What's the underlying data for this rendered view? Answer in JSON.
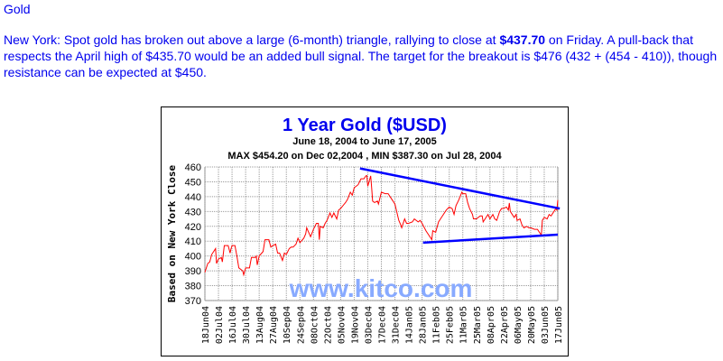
{
  "article": {
    "heading": "Gold",
    "text_before": "New York: Spot gold has broken out above a large (6-month) triangle, rallying to close at ",
    "bold_price": "$437.70",
    "text_after": " on Friday. A pull-back that respects the April high of $435.70 would be an added bull signal. The target for the breakout is $476 (432 + (454 - 410)), though resistance can be expected at $450."
  },
  "chart_data": {
    "type": "line",
    "title": "1 Year Gold ($USD)",
    "subtitle": "June 18, 2004 to June 17, 2005",
    "subtitle2": "MAX $454.20 on Dec 02,2004 , MIN $387.30 on Jul 28, 2004",
    "ylabel": "Based on New York Close",
    "watermark": "www.kitco.com",
    "ylim": [
      370,
      460
    ],
    "yticks": [
      460,
      450,
      440,
      430,
      420,
      410,
      400,
      390,
      380,
      370
    ],
    "xlim": [
      "2004-06-18",
      "2005-06-17"
    ],
    "xticks": [
      "18Jun04",
      "02Jul04",
      "16Jul04",
      "30Jul04",
      "13Aug04",
      "27Aug04",
      "10Sep04",
      "24Sep04",
      "08Oct04",
      "22Oct04",
      "05Nov04",
      "19Nov04",
      "03Dec04",
      "17Dec04",
      "31Dec04",
      "14Jan05",
      "28Jan05",
      "11Feb05",
      "25Feb05",
      "11Mar05",
      "25Mar05",
      "08Apr05",
      "22Apr05",
      "06May05",
      "20May05",
      "03Jun05",
      "17Jun05"
    ],
    "grid": true,
    "colors": {
      "price": "#ff0000",
      "trendlines": "#0000ff",
      "title": "#0000ee",
      "watermark": "#88aaff"
    },
    "series": [
      {
        "x": [
          "2004-06-18",
          "2004-06-21",
          "2004-06-23",
          "2004-06-25",
          "2004-06-29",
          "2004-06-30",
          "2004-07-02",
          "2004-07-05",
          "2004-07-06",
          "2004-07-08",
          "2004-07-12",
          "2004-07-14",
          "2004-07-15",
          "2004-07-16",
          "2004-07-19",
          "2004-07-21",
          "2004-07-23",
          "2004-07-27",
          "2004-07-28",
          "2004-07-30",
          "2004-08-03",
          "2004-08-05",
          "2004-08-09",
          "2004-08-10",
          "2004-08-11",
          "2004-08-13",
          "2004-08-17",
          "2004-08-19",
          "2004-08-23",
          "2004-08-25",
          "2004-08-27",
          "2004-08-30",
          "2004-09-01",
          "2004-09-03",
          "2004-09-06",
          "2004-09-08",
          "2004-09-10",
          "2004-09-13",
          "2004-09-15",
          "2004-09-17",
          "2004-09-20",
          "2004-09-22",
          "2004-09-24",
          "2004-09-28",
          "2004-09-30",
          "2004-10-01",
          "2004-10-05",
          "2004-10-08",
          "2004-10-11",
          "2004-10-13",
          "2004-10-14",
          "2004-10-15",
          "2004-10-18",
          "2004-10-20",
          "2004-10-22",
          "2004-10-25",
          "2004-10-27",
          "2004-10-29",
          "2004-11-01",
          "2004-11-03",
          "2004-11-05",
          "2004-11-10",
          "2004-11-12",
          "2004-11-15",
          "2004-11-17",
          "2004-11-19",
          "2004-11-23",
          "2004-11-26",
          "2004-11-29",
          "2004-12-01",
          "2004-12-02",
          "2004-12-03",
          "2004-12-06",
          "2004-12-07",
          "2004-12-08",
          "2004-12-10",
          "2004-12-13",
          "2004-12-14",
          "2004-12-17",
          "2004-12-21",
          "2004-12-24",
          "2004-12-28",
          "2004-12-31",
          "2005-01-04",
          "2005-01-06",
          "2005-01-07",
          "2005-01-10",
          "2005-01-12",
          "2005-01-14",
          "2005-01-18",
          "2005-01-20",
          "2005-01-24",
          "2005-01-26",
          "2005-01-28",
          "2005-02-01",
          "2005-02-03",
          "2005-02-07",
          "2005-02-08",
          "2005-02-11",
          "2005-02-14",
          "2005-02-17",
          "2005-02-18",
          "2005-02-22",
          "2005-02-25",
          "2005-02-28",
          "2005-03-02",
          "2005-03-04",
          "2005-03-07",
          "2005-03-10",
          "2005-03-11",
          "2005-03-14",
          "2005-03-16",
          "2005-03-18",
          "2005-03-21",
          "2005-03-22",
          "2005-03-25",
          "2005-03-29",
          "2005-03-31",
          "2005-04-01",
          "2005-04-04",
          "2005-04-06",
          "2005-04-08",
          "2005-04-11",
          "2005-04-13",
          "2005-04-15",
          "2005-04-18",
          "2005-04-20",
          "2005-04-22",
          "2005-04-25",
          "2005-04-27",
          "2005-04-28",
          "2005-04-29",
          "2005-05-03",
          "2005-05-05",
          "2005-05-06",
          "2005-05-09",
          "2005-05-11",
          "2005-05-13",
          "2005-05-16",
          "2005-05-18",
          "2005-05-20",
          "2005-05-24",
          "2005-05-27",
          "2005-05-31",
          "2005-06-01",
          "2005-06-03",
          "2005-06-06",
          "2005-06-08",
          "2005-06-10",
          "2005-06-13",
          "2005-06-15",
          "2005-06-16",
          "2005-06-17"
        ],
        "y": [
          389,
          395,
          396,
          401,
          405,
          395,
          398,
          399,
          396,
          407,
          407,
          402,
          405,
          407,
          407,
          400,
          392,
          390,
          387.3,
          392,
          392,
          399,
          399,
          400,
          394,
          400,
          403,
          411,
          411,
          406,
          407,
          408,
          402,
          402,
          397,
          402,
          401,
          405,
          406,
          406,
          408,
          412,
          409,
          412,
          415,
          419,
          413,
          418,
          422,
          422,
          411,
          420,
          419,
          422,
          424,
          429,
          426,
          429,
          425,
          431,
          432,
          436,
          438,
          443,
          441,
          446,
          448,
          452,
          452,
          454,
          454.2,
          447,
          454,
          446,
          437,
          436,
          437,
          435,
          443,
          442,
          442,
          438,
          435,
          424,
          421,
          419,
          425,
          422,
          422,
          423,
          425,
          423,
          424,
          422,
          417,
          415,
          411,
          417,
          416,
          423,
          426,
          427,
          431,
          433,
          432,
          428,
          434,
          438,
          443,
          442,
          442,
          436,
          432,
          428,
          425,
          425,
          427,
          427,
          423,
          426,
          428,
          425,
          428,
          425,
          424,
          430,
          432,
          432,
          433,
          431,
          435.7,
          430,
          426,
          428,
          424,
          425,
          421,
          419,
          420,
          419,
          419,
          418,
          418,
          414,
          424,
          426,
          425,
          428,
          427,
          430,
          432,
          431,
          437.7
        ]
      }
    ],
    "trendlines": [
      {
        "x": [
          "2004-11-25",
          "2005-06-19"
        ],
        "y": [
          459,
          432
        ]
      },
      {
        "x": [
          "2005-01-29",
          "2005-06-17"
        ],
        "y": [
          409,
          414.4
        ]
      }
    ]
  }
}
